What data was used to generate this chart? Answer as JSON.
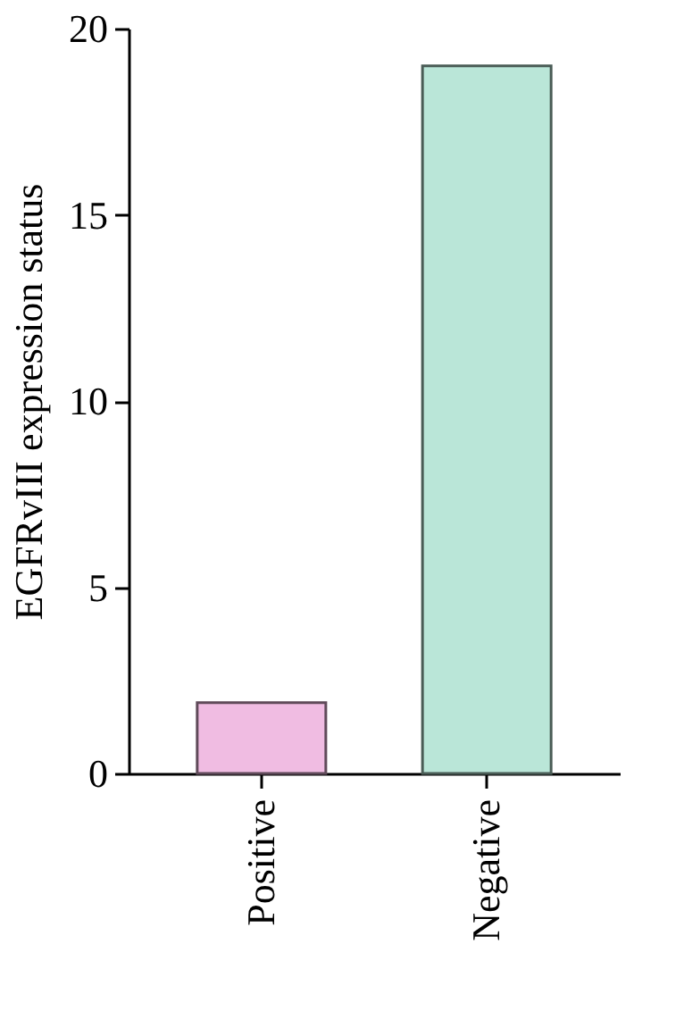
{
  "chart_data": {
    "type": "bar",
    "ylabel": "EGFRvIII expression status",
    "categories": [
      "Positive",
      "Negative"
    ],
    "values": [
      1.9,
      19
    ],
    "colors": [
      "#f0bce2",
      "#bae6d8"
    ],
    "ylim": [
      0,
      20
    ],
    "yticks": [
      0,
      5,
      10,
      15,
      20
    ],
    "grid": false
  }
}
